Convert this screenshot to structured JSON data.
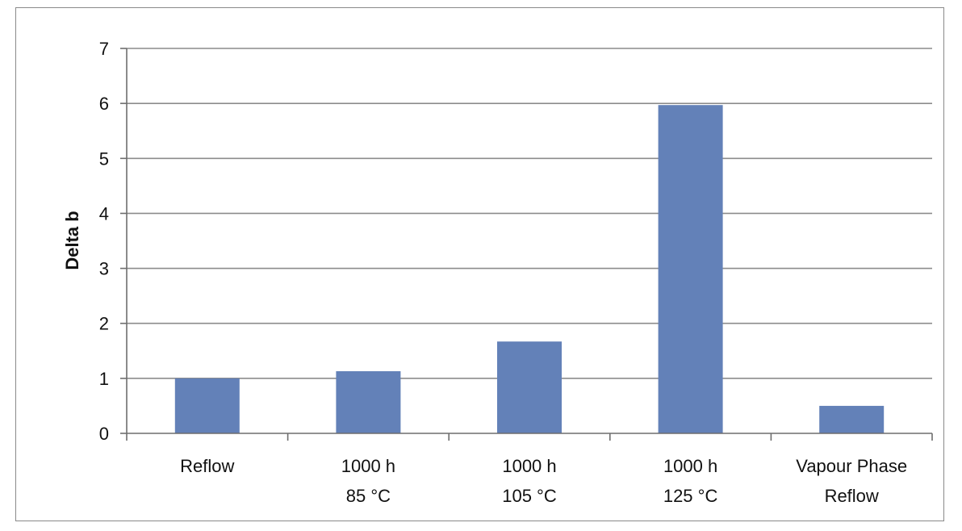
{
  "chart_data": {
    "type": "bar",
    "categories": [
      [
        "Reflow"
      ],
      [
        "1000 h",
        "85 °C"
      ],
      [
        "1000 h",
        "105 °C"
      ],
      [
        "1000 h",
        "125 °C"
      ],
      [
        "Vapour Phase",
        "Reflow"
      ]
    ],
    "values": [
      1.0,
      1.13,
      1.67,
      5.97,
      0.5
    ],
    "title": "",
    "xlabel": "",
    "ylabel": "Delta b",
    "ylim": [
      0,
      7
    ],
    "yticks": [
      0,
      1,
      2,
      3,
      4,
      5,
      6,
      7
    ],
    "grid": true,
    "legend": "none",
    "colors": {
      "bar": "#6381b8",
      "grid": "#8c8c8c",
      "axis": "#6e6e6e"
    }
  }
}
